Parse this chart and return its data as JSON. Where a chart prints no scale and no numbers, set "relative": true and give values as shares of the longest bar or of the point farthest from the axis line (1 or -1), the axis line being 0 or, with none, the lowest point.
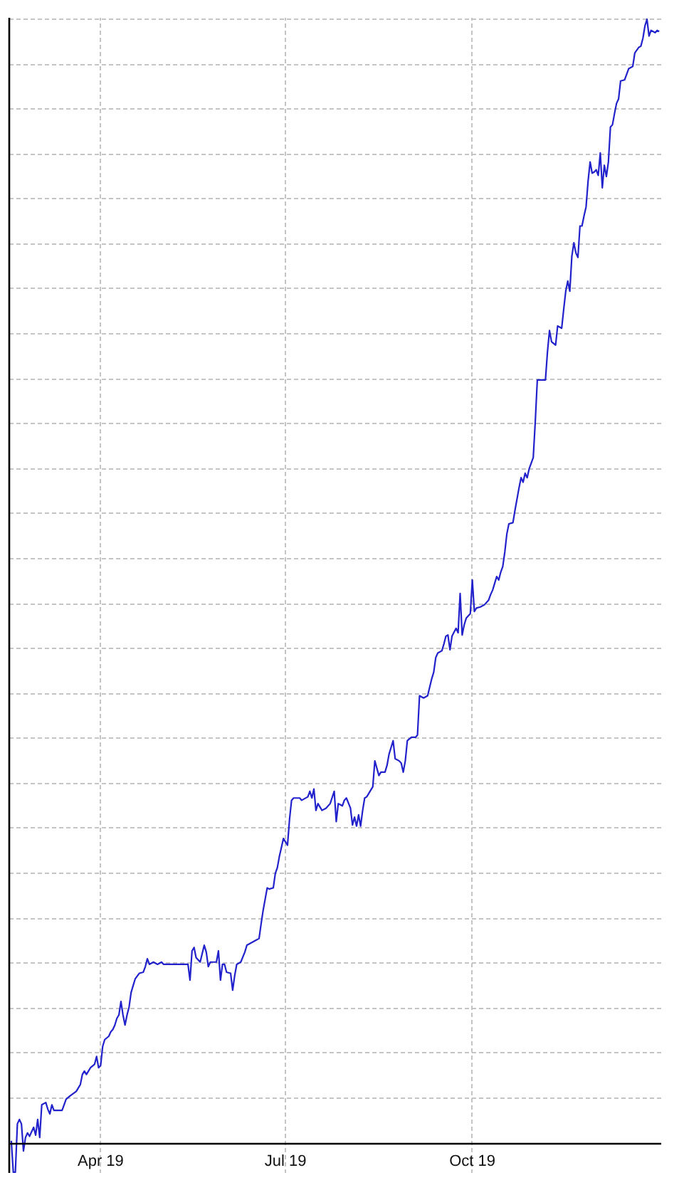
{
  "chart_data": {
    "type": "line",
    "relative": true,
    "color": "#2222cc",
    "line_style": "solid",
    "grid": true,
    "tick_labels": "x",
    "xlim": [
      "2019-02-15",
      "2020-01-02"
    ],
    "xticks": [
      {
        "value": "2019-04-01",
        "label": "Apr 19"
      },
      {
        "value": "2019-07-01",
        "label": "Jul 19"
      },
      {
        "value": "2019-10-01",
        "label": "Oct 19"
      }
    ],
    "x": [
      "2019-02-16",
      "2019-02-17",
      "2019-02-18",
      "2019-02-19",
      "2019-02-20",
      "2019-02-21",
      "2019-02-22",
      "2019-02-23",
      "2019-02-24",
      "2019-02-25",
      "2019-02-27",
      "2019-02-28",
      "2019-03-01",
      "2019-03-02",
      "2019-03-03",
      "2019-03-05",
      "2019-03-06",
      "2019-03-07",
      "2019-03-08",
      "2019-03-09",
      "2019-03-13",
      "2019-03-14",
      "2019-03-15",
      "2019-03-17",
      "2019-03-20",
      "2019-03-21",
      "2019-03-22",
      "2019-03-23",
      "2019-03-24",
      "2019-03-25",
      "2019-03-26",
      "2019-03-27",
      "2019-03-29",
      "2019-03-30",
      "2019-03-31",
      "2019-04-01",
      "2019-04-02",
      "2019-04-03",
      "2019-04-05",
      "2019-04-06",
      "2019-04-07",
      "2019-04-08",
      "2019-04-09",
      "2019-04-10",
      "2019-04-11",
      "2019-04-12",
      "2019-04-13",
      "2019-04-14",
      "2019-04-15",
      "2019-04-16",
      "2019-04-17",
      "2019-04-18",
      "2019-04-20",
      "2019-04-22",
      "2019-04-23",
      "2019-04-24",
      "2019-04-25",
      "2019-04-27",
      "2019-04-29",
      "2019-05-01",
      "2019-05-02",
      "2019-05-14",
      "2019-05-15",
      "2019-05-16",
      "2019-05-17",
      "2019-05-18",
      "2019-05-20",
      "2019-05-22",
      "2019-05-23",
      "2019-05-24",
      "2019-05-25",
      "2019-05-28",
      "2019-05-29",
      "2019-05-30",
      "2019-05-31",
      "2019-06-01",
      "2019-06-02",
      "2019-06-04",
      "2019-06-05",
      "2019-06-06",
      "2019-06-07",
      "2019-06-09",
      "2019-06-11",
      "2019-06-12",
      "2019-06-13",
      "2019-06-16",
      "2019-06-18",
      "2019-06-19",
      "2019-06-20",
      "2019-06-21",
      "2019-06-22",
      "2019-06-23",
      "2019-06-25",
      "2019-06-26",
      "2019-06-27",
      "2019-06-28",
      "2019-06-29",
      "2019-06-30",
      "2019-07-02",
      "2019-07-03",
      "2019-07-04",
      "2019-07-05",
      "2019-07-08",
      "2019-07-09",
      "2019-07-12",
      "2019-07-13",
      "2019-07-14",
      "2019-07-15",
      "2019-07-16",
      "2019-07-17",
      "2019-07-19",
      "2019-07-21",
      "2019-07-23",
      "2019-07-25",
      "2019-07-26",
      "2019-07-27",
      "2019-07-29",
      "2019-07-30",
      "2019-07-31",
      "2019-08-02",
      "2019-08-03",
      "2019-08-04",
      "2019-08-05",
      "2019-08-06",
      "2019-08-07",
      "2019-08-08",
      "2019-08-09",
      "2019-08-10",
      "2019-08-11",
      "2019-08-13",
      "2019-08-14",
      "2019-08-16",
      "2019-08-17",
      "2019-08-19",
      "2019-08-20",
      "2019-08-21",
      "2019-08-23",
      "2019-08-24",
      "2019-08-26",
      "2019-08-27",
      "2019-08-28",
      "2019-08-29",
      "2019-08-30",
      "2019-09-01",
      "2019-09-03",
      "2019-09-04",
      "2019-09-05",
      "2019-09-07",
      "2019-09-09",
      "2019-09-11",
      "2019-09-12",
      "2019-09-13",
      "2019-09-14",
      "2019-09-16",
      "2019-09-17",
      "2019-09-18",
      "2019-09-19",
      "2019-09-20",
      "2019-09-21",
      "2019-09-23",
      "2019-09-24",
      "2019-09-25",
      "2019-09-26",
      "2019-09-27",
      "2019-09-28",
      "2019-09-30",
      "2019-10-01",
      "2019-10-02",
      "2019-10-03",
      "2019-10-05",
      "2019-10-07",
      "2019-10-09",
      "2019-10-10",
      "2019-10-11",
      "2019-10-12",
      "2019-10-13",
      "2019-10-14",
      "2019-10-15",
      "2019-10-16",
      "2019-10-17",
      "2019-10-18",
      "2019-10-19",
      "2019-10-21",
      "2019-10-22",
      "2019-10-24",
      "2019-10-25",
      "2019-10-26",
      "2019-10-27",
      "2019-10-28",
      "2019-10-29",
      "2019-10-31",
      "2019-11-01",
      "2019-11-02",
      "2019-11-06",
      "2019-11-07",
      "2019-11-08",
      "2019-11-09",
      "2019-11-11",
      "2019-11-12",
      "2019-11-14",
      "2019-11-15",
      "2019-11-16",
      "2019-11-17",
      "2019-11-18",
      "2019-11-19",
      "2019-11-20",
      "2019-11-21",
      "2019-11-22",
      "2019-11-23",
      "2019-11-24",
      "2019-11-25",
      "2019-11-26",
      "2019-11-27",
      "2019-11-28",
      "2019-11-29",
      "2019-11-30",
      "2019-12-01",
      "2019-12-02",
      "2019-12-03",
      "2019-12-04",
      "2019-12-05",
      "2019-12-06",
      "2019-12-07",
      "2019-12-08",
      "2019-12-09",
      "2019-12-10",
      "2019-12-11",
      "2019-12-12",
      "2019-12-13",
      "2019-12-15",
      "2019-12-17",
      "2019-12-19",
      "2019-12-20",
      "2019-12-22",
      "2019-12-23",
      "2019-12-24",
      "2019-12-25",
      "2019-12-26",
      "2019-12-27",
      "2019-12-28",
      "2019-12-29",
      "2019-12-30",
      "2019-12-31",
      "2020-01-01"
    ],
    "values": [
      0.002,
      -0.026,
      -0.026,
      0.017,
      0.021,
      0.017,
      -0.007,
      0.005,
      0.009,
      0.006,
      0.014,
      0.007,
      0.021,
      0.005,
      0.034,
      0.036,
      0.03,
      0.026,
      0.034,
      0.029,
      0.029,
      0.034,
      0.039,
      0.042,
      0.046,
      0.049,
      0.052,
      0.061,
      0.064,
      0.061,
      0.064,
      0.067,
      0.07,
      0.077,
      0.067,
      0.069,
      0.086,
      0.092,
      0.095,
      0.099,
      0.101,
      0.105,
      0.111,
      0.114,
      0.126,
      0.114,
      0.105,
      0.114,
      0.121,
      0.134,
      0.14,
      0.146,
      0.151,
      0.152,
      0.157,
      0.164,
      0.159,
      0.161,
      0.159,
      0.161,
      0.159,
      0.159,
      0.145,
      0.171,
      0.174,
      0.165,
      0.161,
      0.176,
      0.17,
      0.157,
      0.161,
      0.161,
      0.171,
      0.145,
      0.159,
      0.159,
      0.152,
      0.151,
      0.136,
      0.149,
      0.159,
      0.161,
      0.17,
      0.176,
      0.177,
      0.18,
      0.182,
      0.195,
      0.207,
      0.217,
      0.227,
      0.226,
      0.227,
      0.24,
      0.245,
      0.255,
      0.263,
      0.271,
      0.265,
      0.288,
      0.305,
      0.307,
      0.307,
      0.305,
      0.308,
      0.313,
      0.307,
      0.315,
      0.296,
      0.302,
      0.296,
      0.298,
      0.302,
      0.313,
      0.286,
      0.302,
      0.3,
      0.305,
      0.307,
      0.298,
      0.283,
      0.29,
      0.282,
      0.292,
      0.282,
      0.296,
      0.307,
      0.308,
      0.311,
      0.317,
      0.34,
      0.327,
      0.33,
      0.33,
      0.336,
      0.346,
      0.358,
      0.342,
      0.34,
      0.338,
      0.33,
      0.34,
      0.358,
      0.361,
      0.361,
      0.363,
      0.398,
      0.396,
      0.398,
      0.413,
      0.419,
      0.432,
      0.436,
      0.438,
      0.444,
      0.451,
      0.452,
      0.439,
      0.451,
      0.458,
      0.454,
      0.489,
      0.452,
      0.461,
      0.467,
      0.471,
      0.501,
      0.473,
      0.476,
      0.477,
      0.479,
      0.483,
      0.488,
      0.492,
      0.498,
      0.504,
      0.501,
      0.508,
      0.513,
      0.526,
      0.542,
      0.551,
      0.552,
      0.563,
      0.583,
      0.592,
      0.588,
      0.596,
      0.592,
      0.6,
      0.61,
      0.642,
      0.679,
      0.679,
      0.704,
      0.723,
      0.713,
      0.71,
      0.727,
      0.725,
      0.742,
      0.758,
      0.767,
      0.758,
      0.789,
      0.801,
      0.792,
      0.788,
      0.816,
      0.816,
      0.825,
      0.833,
      0.856,
      0.873,
      0.863,
      0.864,
      0.866,
      0.861,
      0.881,
      0.85,
      0.87,
      0.86,
      0.873,
      0.904,
      0.906,
      0.916,
      0.925,
      0.929,
      0.945,
      0.946,
      0.956,
      0.958,
      0.97,
      0.975,
      0.976,
      0.983,
      0.994,
      1.0,
      0.985,
      0.99,
      0.989,
      0.988,
      0.99,
      0.989
    ]
  }
}
